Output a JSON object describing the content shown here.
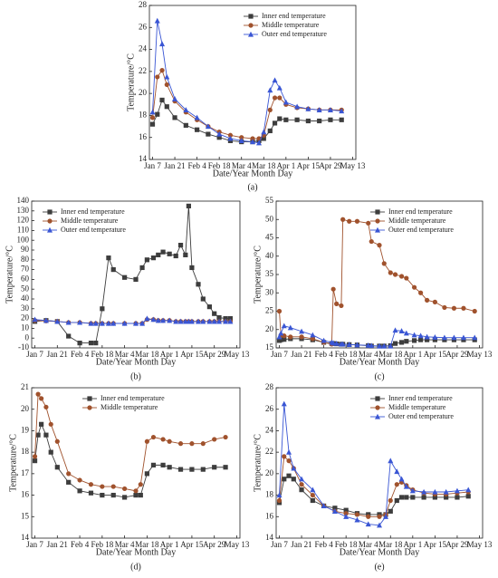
{
  "chart_data": [
    {
      "type": "line",
      "label": "(a)",
      "xlabel": "Date/Year Month Day",
      "ylabel": "Temperature/°C",
      "xlim": [
        -2,
        128
      ],
      "xticks": [
        {
          "value": 0,
          "label": "Jan 7"
        },
        {
          "value": 14,
          "label": "Jan 21"
        },
        {
          "value": 28,
          "label": "Feb 4"
        },
        {
          "value": 42,
          "label": "Feb 18"
        },
        {
          "value": 56,
          "label": "Mar 4"
        },
        {
          "value": 70,
          "label": "Mar 18"
        },
        {
          "value": 84,
          "label": "Apr 1"
        },
        {
          "value": 98,
          "label": "Apr 15"
        },
        {
          "value": 112,
          "label": "Apr 29"
        },
        {
          "value": 126,
          "label": "May 13"
        }
      ],
      "ylim": [
        14,
        28
      ],
      "yticks": [
        14,
        16,
        18,
        20,
        22,
        24,
        26,
        28
      ],
      "legend": "upper right",
      "x": [
        0,
        3,
        6,
        9,
        14,
        21,
        28,
        35,
        42,
        49,
        56,
        63,
        67,
        70,
        74,
        77,
        80,
        84,
        91,
        98,
        105,
        112,
        119
      ],
      "series": [
        {
          "name": "Inner end temperature",
          "color": "#3d3d3d",
          "marker": "square",
          "values": [
            17.2,
            18.1,
            19.4,
            18.8,
            17.8,
            17.1,
            16.7,
            16.3,
            16.0,
            15.7,
            15.6,
            15.6,
            15.7,
            15.9,
            16.6,
            17.3,
            17.7,
            17.6,
            17.6,
            17.5,
            17.5,
            17.6,
            17.6
          ]
        },
        {
          "name": "Middle temperature",
          "color": "#a0522d",
          "marker": "circle",
          "values": [
            17.8,
            21.5,
            22.1,
            20.8,
            19.3,
            18.3,
            17.6,
            17.0,
            16.5,
            16.2,
            16.0,
            15.9,
            15.9,
            16.2,
            18.5,
            19.6,
            19.6,
            19.0,
            18.7,
            18.6,
            18.5,
            18.5,
            18.5
          ]
        },
        {
          "name": "Outer end temperature",
          "color": "#3a56d4",
          "marker": "triangle",
          "values": [
            18.3,
            26.6,
            24.5,
            21.5,
            19.5,
            18.5,
            17.8,
            17.0,
            16.3,
            15.9,
            15.7,
            15.6,
            15.5,
            16.5,
            20.3,
            21.2,
            20.5,
            19.2,
            18.8,
            18.6,
            18.5,
            18.5,
            18.4
          ]
        }
      ]
    },
    {
      "type": "line",
      "label": "(b)",
      "xlabel": "Date/Year Month Day",
      "ylabel": "Temperature/°C",
      "xlim": [
        -2,
        128
      ],
      "xticks": [
        {
          "value": 0,
          "label": "Jan 7"
        },
        {
          "value": 14,
          "label": "Jan 21"
        },
        {
          "value": 28,
          "label": "Feb 4"
        },
        {
          "value": 42,
          "label": "Feb 18"
        },
        {
          "value": 56,
          "label": "Mar 4"
        },
        {
          "value": 70,
          "label": "Mar 18"
        },
        {
          "value": 84,
          "label": "Apr 1"
        },
        {
          "value": 98,
          "label": "Apr 15"
        },
        {
          "value": 112,
          "label": "Apr 29"
        },
        {
          "value": 126,
          "label": "May 13"
        }
      ],
      "ylim": [
        -10,
        140
      ],
      "yticks": [
        -10,
        0,
        10,
        20,
        30,
        40,
        50,
        60,
        70,
        80,
        90,
        100,
        110,
        120,
        130,
        140
      ],
      "legend": "upper left",
      "x": [
        0,
        7,
        14,
        21,
        28,
        35,
        38,
        42,
        46,
        49,
        56,
        63,
        67,
        70,
        74,
        77,
        80,
        84,
        88,
        91,
        94,
        96,
        98,
        102,
        105,
        109,
        112,
        115,
        119,
        122
      ],
      "series": [
        {
          "name": "Inner end temperature",
          "color": "#3d3d3d",
          "marker": "square",
          "values": [
            17,
            18,
            17,
            2,
            -5,
            -5,
            -5,
            30,
            82,
            70,
            62,
            60,
            72,
            80,
            82,
            85,
            88,
            86,
            84,
            95,
            85,
            135,
            72,
            55,
            40,
            32,
            25,
            21,
            20,
            20
          ]
        },
        {
          "name": "Middle temperature",
          "color": "#a0522d",
          "marker": "circle",
          "values": [
            18,
            17.5,
            17,
            16,
            16,
            15,
            15,
            15,
            15,
            15,
            15,
            15,
            15,
            19,
            19,
            18,
            18,
            18,
            17,
            17,
            17,
            17,
            17,
            17,
            17,
            17,
            17,
            17,
            17,
            17
          ]
        },
        {
          "name": "Outer end temperature",
          "color": "#3a56d4",
          "marker": "triangle",
          "values": [
            19,
            18,
            17,
            16,
            16,
            15,
            15,
            15,
            15,
            15,
            15,
            15,
            15,
            20,
            19,
            18,
            18,
            18,
            17,
            17,
            17,
            17,
            17,
            17,
            17,
            17,
            17,
            17,
            17,
            17
          ]
        }
      ]
    },
    {
      "type": "line",
      "label": "(c)",
      "xlabel": "Date/Year Month Day",
      "ylabel": "Temperature/°C",
      "xlim": [
        -2,
        128
      ],
      "xticks": [
        {
          "value": 0,
          "label": "Jan 7"
        },
        {
          "value": 14,
          "label": "Jan 21"
        },
        {
          "value": 28,
          "label": "Feb 4"
        },
        {
          "value": 42,
          "label": "Feb 18"
        },
        {
          "value": 56,
          "label": "Mar 4"
        },
        {
          "value": 70,
          "label": "Mar 18"
        },
        {
          "value": 84,
          "label": "Apr 1"
        },
        {
          "value": 98,
          "label": "Apr 15"
        },
        {
          "value": 112,
          "label": "Apr 29"
        },
        {
          "value": 126,
          "label": "May 13"
        }
      ],
      "ylim": [
        15,
        55
      ],
      "yticks": [
        15,
        20,
        25,
        30,
        35,
        40,
        45,
        50,
        55
      ],
      "legend": "upper right",
      "x": [
        0,
        1,
        3,
        7,
        14,
        21,
        28,
        33,
        34,
        36,
        39,
        40,
        44,
        49,
        56,
        58,
        63,
        66,
        70,
        73,
        77,
        80,
        85,
        89,
        93,
        98,
        104,
        110,
        116,
        123
      ],
      "series": [
        {
          "name": "Inner end temperature",
          "color": "#3d3d3d",
          "marker": "square",
          "values": [
            17,
            17.2,
            17.3,
            17.5,
            17.5,
            17.2,
            16.5,
            16.2,
            16.2,
            16.1,
            16,
            16,
            15.9,
            15.8,
            15.6,
            15.5,
            15.5,
            15.5,
            15.6,
            16.2,
            16.5,
            16.8,
            17,
            17.2,
            17.2,
            17.2,
            17.2,
            17.2,
            17.2,
            17.2
          ]
        },
        {
          "name": "Middle temperature",
          "color": "#a0522d",
          "marker": "circle",
          "values": [
            25,
            18.5,
            18.3,
            18,
            18,
            17.5,
            16.5,
            16,
            31,
            27,
            26.5,
            50,
            49.5,
            49.5,
            49,
            44,
            43,
            38,
            35.5,
            35,
            34.5,
            34,
            31.5,
            30,
            28,
            27.5,
            26,
            25.8,
            25.8,
            25
          ]
        },
        {
          "name": "Outer end temperature",
          "color": "#3a56d4",
          "marker": "triangle",
          "values": [
            18,
            19,
            21,
            20.5,
            19.5,
            18.5,
            17,
            16.5,
            16.3,
            16.2,
            16,
            16,
            15.9,
            15.8,
            15.7,
            15.6,
            15.5,
            15.5,
            15.5,
            19.8,
            19.6,
            19,
            18.5,
            18.3,
            18,
            17.9,
            17.8,
            17.8,
            17.8,
            17.8
          ]
        }
      ]
    },
    {
      "type": "line",
      "label": "(d)",
      "xlabel": "Date/Year Month Day",
      "ylabel": "Temperature/°C",
      "xlim": [
        -2,
        128
      ],
      "xticks": [
        {
          "value": 0,
          "label": "Jan 7"
        },
        {
          "value": 14,
          "label": "Jan 21"
        },
        {
          "value": 28,
          "label": "Feb 4"
        },
        {
          "value": 42,
          "label": "Feb 18"
        },
        {
          "value": 56,
          "label": "Mar 4"
        },
        {
          "value": 70,
          "label": "Mar 18"
        },
        {
          "value": 84,
          "label": "Apr 1"
        },
        {
          "value": 98,
          "label": "Apr 15"
        },
        {
          "value": 112,
          "label": "Apr 29"
        },
        {
          "value": 126,
          "label": "May 13"
        }
      ],
      "ylim": [
        14,
        21
      ],
      "yticks": [
        14,
        15,
        16,
        17,
        18,
        19,
        20,
        21
      ],
      "legend": "upper center",
      "x": [
        0,
        2,
        4,
        7,
        10,
        14,
        21,
        28,
        35,
        42,
        49,
        56,
        63,
        66,
        70,
        74,
        80,
        84,
        91,
        98,
        105,
        112,
        119
      ],
      "series": [
        {
          "name": "Inner end temperature",
          "color": "#3d3d3d",
          "marker": "square",
          "values": [
            17.6,
            18.8,
            19.3,
            18.8,
            18,
            17.3,
            16.6,
            16.2,
            16.1,
            16,
            16,
            15.9,
            16,
            16,
            17,
            17.4,
            17.4,
            17.3,
            17.2,
            17.2,
            17.2,
            17.3,
            17.3
          ]
        },
        {
          "name": "Middle temperature",
          "color": "#a0522d",
          "marker": "circle",
          "values": [
            17.8,
            20.7,
            20.5,
            20.1,
            19.3,
            18.5,
            17,
            16.7,
            16.5,
            16.4,
            16.4,
            16.3,
            16.2,
            16.5,
            18.5,
            18.7,
            18.6,
            18.5,
            18.4,
            18.4,
            18.4,
            18.6,
            18.7
          ]
        }
      ]
    },
    {
      "type": "line",
      "label": "(e)",
      "xlabel": "Date/Year Month Day",
      "ylabel": "Temperature/°C",
      "xlim": [
        -2,
        128
      ],
      "xticks": [
        {
          "value": 0,
          "label": "Jan 7"
        },
        {
          "value": 14,
          "label": "Jan 21"
        },
        {
          "value": 28,
          "label": "Feb 4"
        },
        {
          "value": 42,
          "label": "Feb 18"
        },
        {
          "value": 56,
          "label": "Mar 4"
        },
        {
          "value": 70,
          "label": "Mar 18"
        },
        {
          "value": 84,
          "label": "Apr 1"
        },
        {
          "value": 98,
          "label": "Apr 15"
        },
        {
          "value": 112,
          "label": "Apr 29"
        },
        {
          "value": 126,
          "label": "May 13"
        }
      ],
      "ylim": [
        14,
        28
      ],
      "yticks": [
        14,
        16,
        18,
        20,
        22,
        24,
        26,
        28
      ],
      "legend": "upper right",
      "x": [
        0,
        3,
        6,
        9,
        14,
        21,
        28,
        35,
        42,
        49,
        56,
        63,
        67,
        70,
        74,
        77,
        80,
        84,
        91,
        98,
        105,
        112,
        119
      ],
      "series": [
        {
          "name": "Inner end temperature",
          "color": "#3d3d3d",
          "marker": "square",
          "values": [
            17.3,
            19.5,
            19.8,
            19.5,
            18.5,
            17.5,
            17,
            16.8,
            16.6,
            16.3,
            16.2,
            16.2,
            16.2,
            16.5,
            17.5,
            17.8,
            17.8,
            17.8,
            17.8,
            17.8,
            17.8,
            17.8,
            17.9
          ]
        },
        {
          "name": "Middle temperature",
          "color": "#a0522d",
          "marker": "circle",
          "values": [
            17.5,
            21.6,
            21.2,
            20.5,
            19,
            18,
            17,
            16.5,
            16.3,
            16.2,
            16,
            16,
            16.2,
            17.5,
            19,
            19.2,
            18.9,
            18.5,
            18.2,
            18.1,
            18.1,
            18.2,
            18.3
          ]
        },
        {
          "name": "Outer end temperature",
          "color": "#3a56d4",
          "marker": "triangle",
          "values": [
            18,
            26.5,
            22,
            20.5,
            19.5,
            18.5,
            17,
            16.5,
            16,
            15.7,
            15.3,
            15.2,
            16,
            21.2,
            20.2,
            19.5,
            18.8,
            18.4,
            18.3,
            18.3,
            18.3,
            18.4,
            18.5
          ]
        }
      ]
    }
  ]
}
